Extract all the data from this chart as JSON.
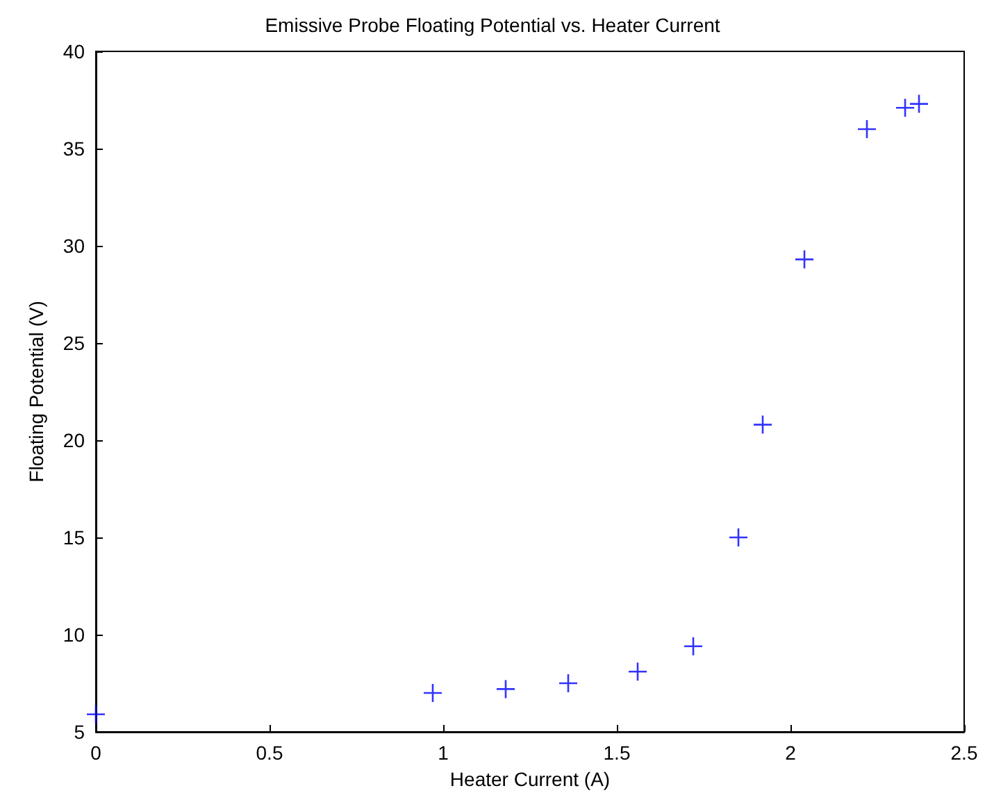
{
  "chart_data": {
    "type": "scatter",
    "title": "Emissive Probe Floating Potential vs. Heater Current",
    "xlabel": "Heater Current (A)",
    "ylabel": "Floating Potential (V)",
    "x": [
      0,
      0.97,
      1.18,
      1.36,
      1.56,
      1.72,
      1.85,
      1.92,
      2.04,
      2.22,
      2.33,
      2.37
    ],
    "series": [
      {
        "color": "#0000ff",
        "values": [
          5.9,
          7.0,
          7.2,
          7.5,
          8.1,
          9.4,
          15.0,
          20.8,
          29.3,
          36.0,
          37.1,
          37.3
        ]
      }
    ],
    "xlim": [
      0,
      2.5
    ],
    "xticks": [
      0,
      0.5,
      1,
      1.5,
      2,
      2.5
    ],
    "ylim": [
      5,
      40
    ],
    "yticks": [
      5,
      10,
      15,
      20,
      25,
      30,
      35,
      40
    ],
    "marker": "cross",
    "grid": false
  }
}
